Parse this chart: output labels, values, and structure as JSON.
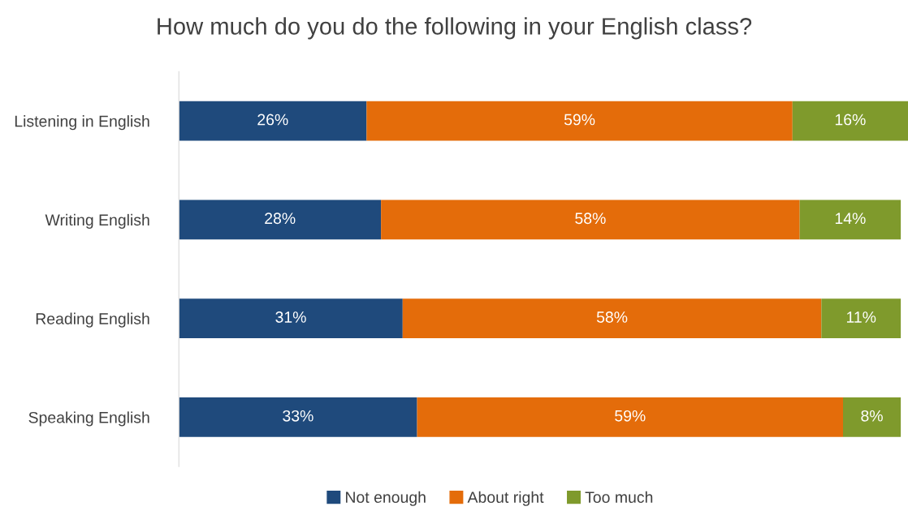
{
  "chart_data": {
    "type": "bar",
    "orientation": "horizontal",
    "stacked": true,
    "title": "How much do you do the following in your English class?",
    "categories": [
      "Listening in English",
      "Writing English",
      "Reading English",
      "Speaking English"
    ],
    "series": [
      {
        "name": "Not enough",
        "color": "#1f4a7c",
        "values": [
          26,
          28,
          31,
          33
        ],
        "value_labels": [
          "26%",
          "28%",
          "31%",
          "33%"
        ]
      },
      {
        "name": "About right",
        "color": "#e46c0a",
        "values": [
          59,
          58,
          58,
          59
        ],
        "value_labels": [
          "59%",
          "58%",
          "58%",
          "59%"
        ]
      },
      {
        "name": "Too much",
        "color": "#7f9a2c",
        "values": [
          16,
          14,
          11,
          8
        ],
        "value_labels": [
          "16%",
          "14%",
          "11%",
          "8%"
        ]
      }
    ],
    "legend": "bottom",
    "tick_labels": "y",
    "grid": false
  }
}
